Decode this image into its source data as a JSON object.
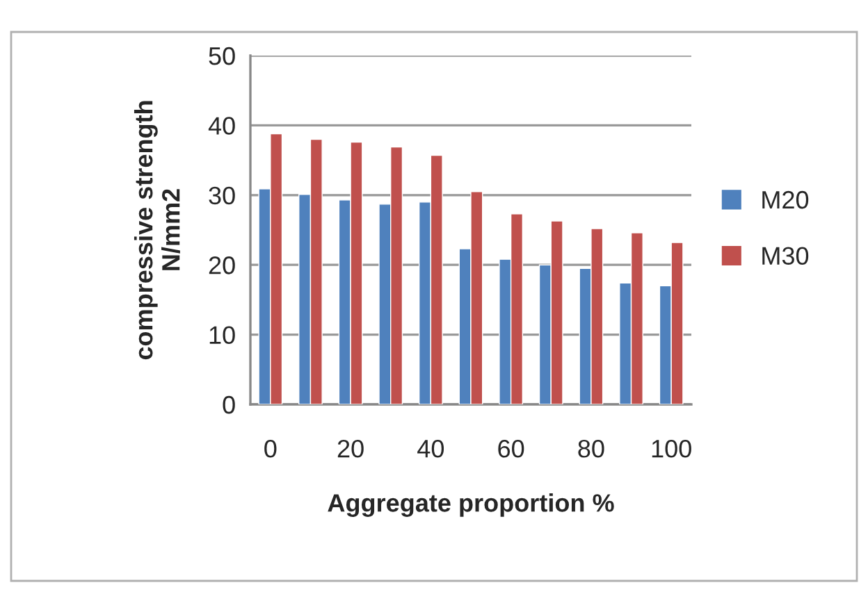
{
  "chart_data": {
    "type": "bar",
    "xlabel": "Aggregate proportion %",
    "ylabel": "compressive strength\nN/mm2",
    "categories": [
      "0",
      null,
      "20",
      null,
      "40",
      null,
      "60",
      null,
      "80",
      null,
      "100"
    ],
    "series": [
      {
        "name": "M20",
        "color": "#4f81bd",
        "values": [
          30.9,
          30.1,
          29.3,
          28.7,
          29.0,
          22.3,
          20.8,
          20.0,
          19.5,
          17.4,
          17.0
        ]
      },
      {
        "name": "M30",
        "color": "#c0504d",
        "values": [
          38.8,
          38.0,
          37.6,
          36.9,
          35.7,
          30.5,
          27.3,
          26.3,
          25.2,
          24.6,
          23.2
        ]
      }
    ],
    "ylim": [
      0,
      50
    ],
    "yticks": [
      0,
      10,
      20,
      30,
      40,
      50
    ],
    "grid": "y",
    "legend": "right"
  }
}
